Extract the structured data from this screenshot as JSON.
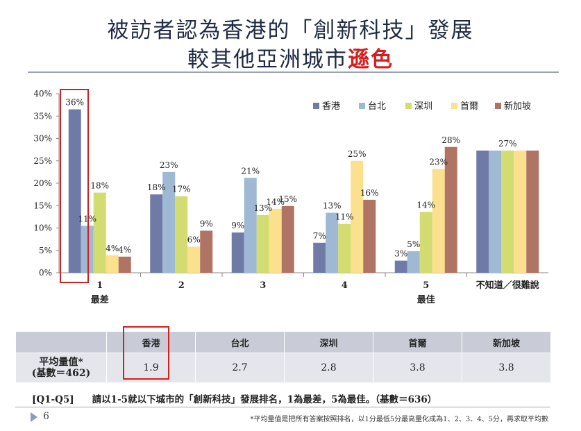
{
  "title": {
    "line1": "被訪者認為香港的「創新科技」發展",
    "line2_prefix": "較其他亞洲城市",
    "line2_accent": "遜色"
  },
  "chart_data": {
    "type": "bar",
    "categories": [
      "1",
      "2",
      "3",
      "4",
      "5",
      "不知道／很難說"
    ],
    "category_sublabels": [
      "最差",
      "",
      "",
      "",
      "最佳",
      ""
    ],
    "series": [
      {
        "name": "香港",
        "color": "#6f7ba6",
        "values": [
          36.5,
          17.5,
          9,
          6.7,
          2.7,
          27.3
        ]
      },
      {
        "name": "台北",
        "color": "#9fb8d4",
        "values": [
          10.5,
          22.5,
          21.2,
          13.4,
          4.8,
          27.3
        ]
      },
      {
        "name": "深圳",
        "color": "#d2dc70",
        "values": [
          17.9,
          17.1,
          12.9,
          10.9,
          13.6,
          27.3
        ]
      },
      {
        "name": "首爾",
        "color": "#fbe08d",
        "values": [
          3.9,
          5.8,
          14.3,
          25,
          23.2,
          27.3
        ]
      },
      {
        "name": "新加坡",
        "color": "#b07464",
        "values": [
          3.6,
          9.4,
          14.9,
          16.3,
          28.1,
          27.3
        ]
      }
    ],
    "data_labels": [
      [
        "36%",
        "11%",
        "18%",
        "4%",
        "4%"
      ],
      [
        "18%",
        "23%",
        "17%",
        "6%",
        "9%"
      ],
      [
        "9%",
        "21%",
        "13%",
        "14%",
        "15%"
      ],
      [
        "7%",
        "13%",
        "11%",
        "25%",
        "16%"
      ],
      [
        "3%",
        "5%",
        "14%",
        "23%",
        "28%"
      ],
      [
        "27%"
      ]
    ],
    "y_ticks": [
      "0%",
      "5%",
      "10%",
      "15%",
      "20%",
      "25%",
      "30%",
      "35%",
      "40%"
    ],
    "ylim": [
      0,
      40
    ],
    "legend_position": "top-right",
    "grid": false
  },
  "table": {
    "headers": [
      "香港",
      "台北",
      "深圳",
      "首爾",
      "新加坡"
    ],
    "row_label_line1": "平均量值*",
    "row_label_line2": "(基數＝462)",
    "values": [
      "1.9",
      "2.7",
      "2.8",
      "3.8",
      "3.8"
    ]
  },
  "question": {
    "code": "[Q1-Q5]",
    "text": "請以1-5就以下城市的「創新科技」發展排名，1為最差，5為最佳。（基數＝636）"
  },
  "page_number": "6",
  "footnote": "*平均量值是把所有答案按照排名，以1分最低5分最高量化成為1、2、3、4、5分，再求取平均數"
}
